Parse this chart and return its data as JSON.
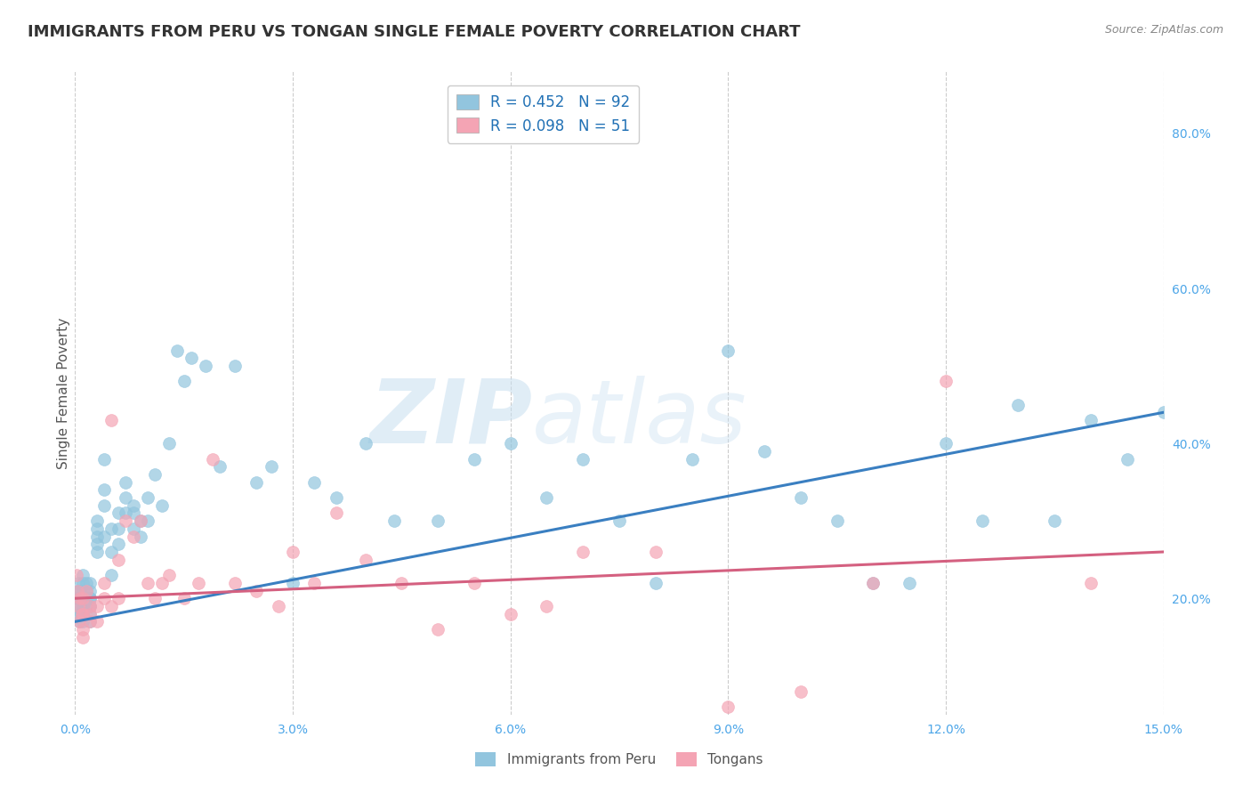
{
  "title": "IMMIGRANTS FROM PERU VS TONGAN SINGLE FEMALE POVERTY CORRELATION CHART",
  "source": "Source: ZipAtlas.com",
  "ylabel": "Single Female Poverty",
  "legend_label1": "Immigrants from Peru",
  "legend_label2": "Tongans",
  "R1": 0.452,
  "N1": 92,
  "R2": 0.098,
  "N2": 51,
  "color_blue": "#92c5de",
  "color_pink": "#f4a4b4",
  "color_line_blue": "#3a7fc1",
  "color_line_pink": "#d46080",
  "watermark": "ZIPatlas",
  "title_fontsize": 13,
  "label_fontsize": 11,
  "tick_fontsize": 10,
  "xlim": [
    0.0,
    0.15
  ],
  "ylim": [
    0.05,
    0.88
  ],
  "right_yticks": [
    0.2,
    0.4,
    0.6,
    0.8
  ],
  "xticks": [
    0.0,
    0.03,
    0.06,
    0.09,
    0.12,
    0.15
  ],
  "peru_x": [
    0.0002,
    0.0003,
    0.0004,
    0.0004,
    0.0005,
    0.0005,
    0.0006,
    0.0006,
    0.0007,
    0.0008,
    0.0009,
    0.001,
    0.001,
    0.001,
    0.001,
    0.001,
    0.001,
    0.001,
    0.001,
    0.001,
    0.0015,
    0.0015,
    0.002,
    0.002,
    0.002,
    0.002,
    0.002,
    0.002,
    0.002,
    0.002,
    0.003,
    0.003,
    0.003,
    0.003,
    0.003,
    0.004,
    0.004,
    0.004,
    0.004,
    0.005,
    0.005,
    0.005,
    0.006,
    0.006,
    0.006,
    0.007,
    0.007,
    0.007,
    0.008,
    0.008,
    0.008,
    0.009,
    0.009,
    0.01,
    0.01,
    0.011,
    0.012,
    0.013,
    0.014,
    0.015,
    0.016,
    0.018,
    0.02,
    0.022,
    0.025,
    0.027,
    0.03,
    0.033,
    0.036,
    0.04,
    0.044,
    0.05,
    0.055,
    0.06,
    0.065,
    0.07,
    0.075,
    0.08,
    0.085,
    0.09,
    0.095,
    0.1,
    0.105,
    0.11,
    0.115,
    0.12,
    0.125,
    0.13,
    0.135,
    0.14,
    0.145,
    0.15
  ],
  "peru_y": [
    0.19,
    0.2,
    0.21,
    0.18,
    0.22,
    0.19,
    0.2,
    0.17,
    0.21,
    0.18,
    0.2,
    0.23,
    0.22,
    0.2,
    0.19,
    0.18,
    0.21,
    0.19,
    0.17,
    0.18,
    0.22,
    0.21,
    0.21,
    0.19,
    0.18,
    0.2,
    0.17,
    0.22,
    0.2,
    0.19,
    0.27,
    0.3,
    0.28,
    0.26,
    0.29,
    0.34,
    0.38,
    0.32,
    0.28,
    0.26,
    0.29,
    0.23,
    0.31,
    0.29,
    0.27,
    0.35,
    0.33,
    0.31,
    0.31,
    0.29,
    0.32,
    0.28,
    0.3,
    0.33,
    0.3,
    0.36,
    0.32,
    0.4,
    0.52,
    0.48,
    0.51,
    0.5,
    0.37,
    0.5,
    0.35,
    0.37,
    0.22,
    0.35,
    0.33,
    0.4,
    0.3,
    0.3,
    0.38,
    0.4,
    0.33,
    0.38,
    0.3,
    0.22,
    0.38,
    0.52,
    0.39,
    0.33,
    0.3,
    0.22,
    0.22,
    0.4,
    0.3,
    0.45,
    0.3,
    0.43,
    0.38,
    0.44
  ],
  "tonga_x": [
    0.0002,
    0.0003,
    0.0005,
    0.0006,
    0.0007,
    0.0009,
    0.001,
    0.001,
    0.001,
    0.001,
    0.0015,
    0.002,
    0.002,
    0.002,
    0.003,
    0.003,
    0.004,
    0.004,
    0.005,
    0.005,
    0.006,
    0.006,
    0.007,
    0.008,
    0.009,
    0.01,
    0.011,
    0.012,
    0.013,
    0.015,
    0.017,
    0.019,
    0.022,
    0.025,
    0.028,
    0.03,
    0.033,
    0.036,
    0.04,
    0.045,
    0.05,
    0.055,
    0.06,
    0.065,
    0.07,
    0.08,
    0.09,
    0.1,
    0.11,
    0.12,
    0.14
  ],
  "tonga_y": [
    0.23,
    0.21,
    0.19,
    0.17,
    0.2,
    0.18,
    0.2,
    0.18,
    0.16,
    0.15,
    0.21,
    0.19,
    0.18,
    0.17,
    0.19,
    0.17,
    0.22,
    0.2,
    0.43,
    0.19,
    0.25,
    0.2,
    0.3,
    0.28,
    0.3,
    0.22,
    0.2,
    0.22,
    0.23,
    0.2,
    0.22,
    0.38,
    0.22,
    0.21,
    0.19,
    0.26,
    0.22,
    0.31,
    0.25,
    0.22,
    0.16,
    0.22,
    0.18,
    0.19,
    0.26,
    0.26,
    0.06,
    0.08,
    0.22,
    0.48,
    0.22
  ],
  "blue_line_y0": 0.17,
  "blue_line_y1": 0.44,
  "pink_line_y0": 0.2,
  "pink_line_y1": 0.26
}
